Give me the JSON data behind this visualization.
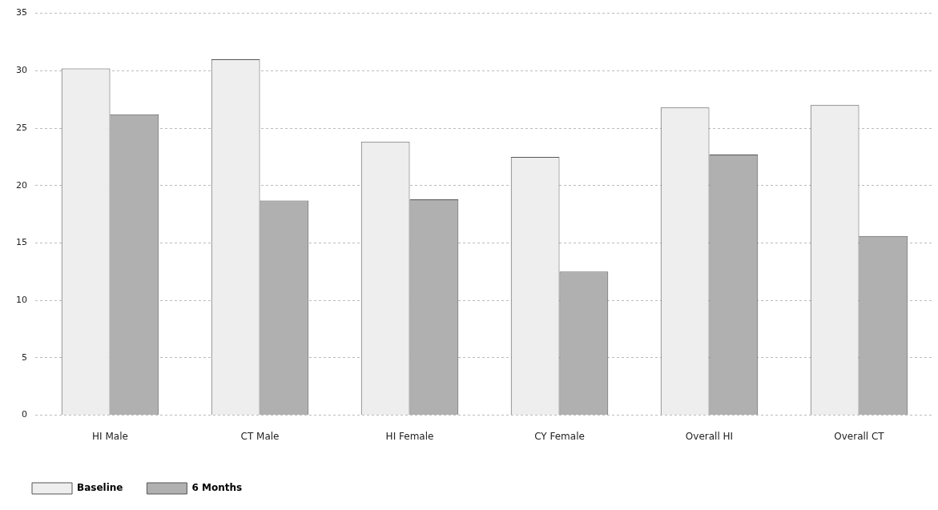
{
  "chart_data": {
    "type": "bar",
    "categories": [
      "HI Male",
      "CT Male",
      "HI Female",
      "CY Female",
      "Overall HI",
      "Overall CT"
    ],
    "series": [
      {
        "name": "Baseline",
        "color": "#eeeeee",
        "values": [
          30.2,
          31.0,
          23.8,
          22.5,
          26.8,
          27.0
        ]
      },
      {
        "name": "6 Months",
        "color": "#b0b0b0",
        "values": [
          26.2,
          18.7,
          18.8,
          12.5,
          22.7,
          15.6
        ]
      }
    ],
    "ylim": [
      0,
      35
    ],
    "yticks": [
      0,
      5,
      10,
      15,
      20,
      25,
      30,
      35
    ],
    "grid": "y",
    "legend": "bottom left"
  }
}
